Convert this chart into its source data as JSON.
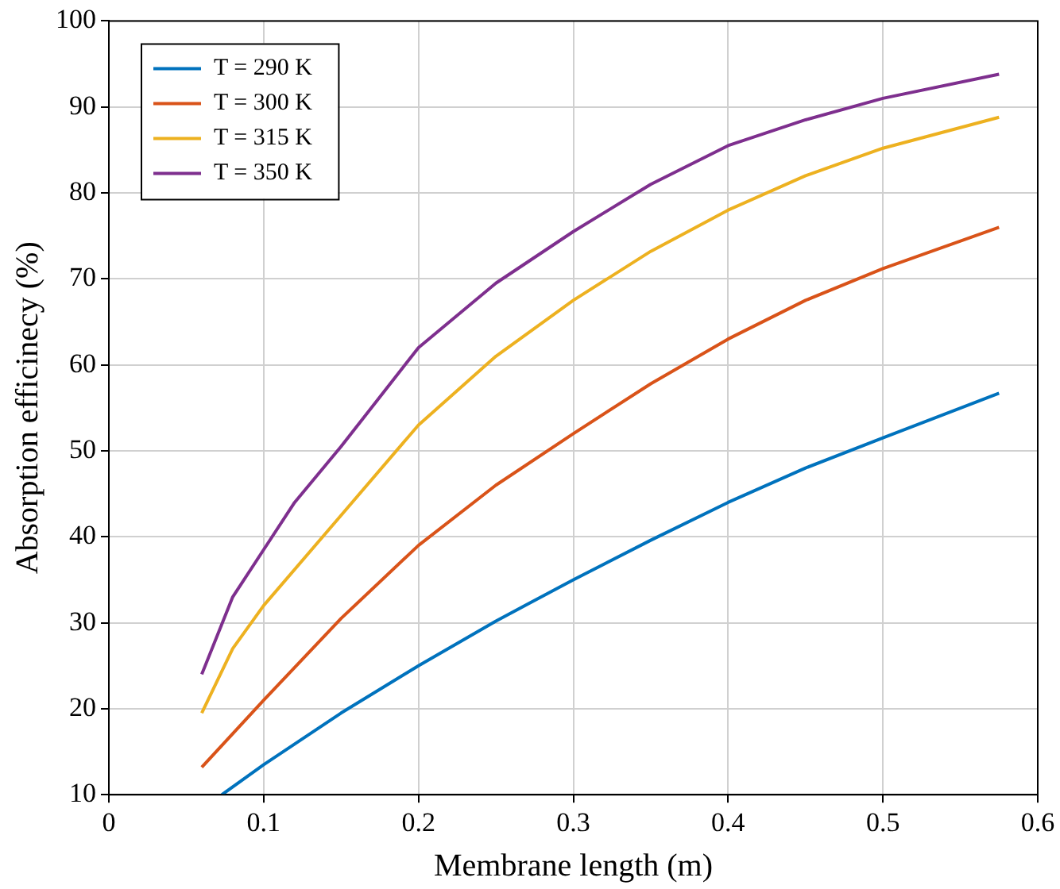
{
  "chart_data": {
    "type": "line",
    "xlabel": "Membrane length (m)",
    "ylabel": "Absorption efficinecy (%)",
    "xlim": [
      0,
      0.6
    ],
    "xticks": [
      0,
      0.1,
      0.2,
      0.3,
      0.4,
      0.5,
      0.6
    ],
    "ylim": [
      10,
      100
    ],
    "yticks": [
      10,
      20,
      30,
      40,
      50,
      60,
      70,
      80,
      90,
      100
    ],
    "grid": true,
    "legend": "top left",
    "line_style": "solid",
    "marker": "none",
    "series": [
      {
        "name": "T = 290 K",
        "color": "#0072bd",
        "x": [
          0.073,
          0.1,
          0.15,
          0.2,
          0.25,
          0.3,
          0.35,
          0.4,
          0.45,
          0.5,
          0.575
        ],
        "values": [
          10,
          13.5,
          19.5,
          25,
          30.2,
          35,
          39.6,
          44,
          48,
          51.5,
          56.7
        ]
      },
      {
        "name": "T = 300 K",
        "color": "#d95319",
        "x": [
          0.06,
          0.1,
          0.15,
          0.2,
          0.25,
          0.3,
          0.35,
          0.4,
          0.45,
          0.5,
          0.575
        ],
        "values": [
          13.2,
          21,
          30.5,
          39,
          46,
          52,
          57.8,
          63,
          67.5,
          71.2,
          76
        ]
      },
      {
        "name": "T = 315 K",
        "color": "#edb120",
        "x": [
          0.06,
          0.08,
          0.1,
          0.15,
          0.2,
          0.25,
          0.3,
          0.35,
          0.4,
          0.45,
          0.5,
          0.575
        ],
        "values": [
          19.5,
          27,
          32,
          42.5,
          53,
          61,
          67.5,
          73.2,
          78,
          82,
          85.2,
          88.8
        ]
      },
      {
        "name": "T = 350 K",
        "color": "#7e2f8e",
        "x": [
          0.06,
          0.08,
          0.1,
          0.12,
          0.15,
          0.2,
          0.25,
          0.3,
          0.35,
          0.4,
          0.45,
          0.5,
          0.575
        ],
        "values": [
          24,
          33,
          38.5,
          44,
          50.5,
          62,
          69.5,
          75.5,
          81,
          85.5,
          88.5,
          91,
          93.8
        ]
      }
    ]
  }
}
